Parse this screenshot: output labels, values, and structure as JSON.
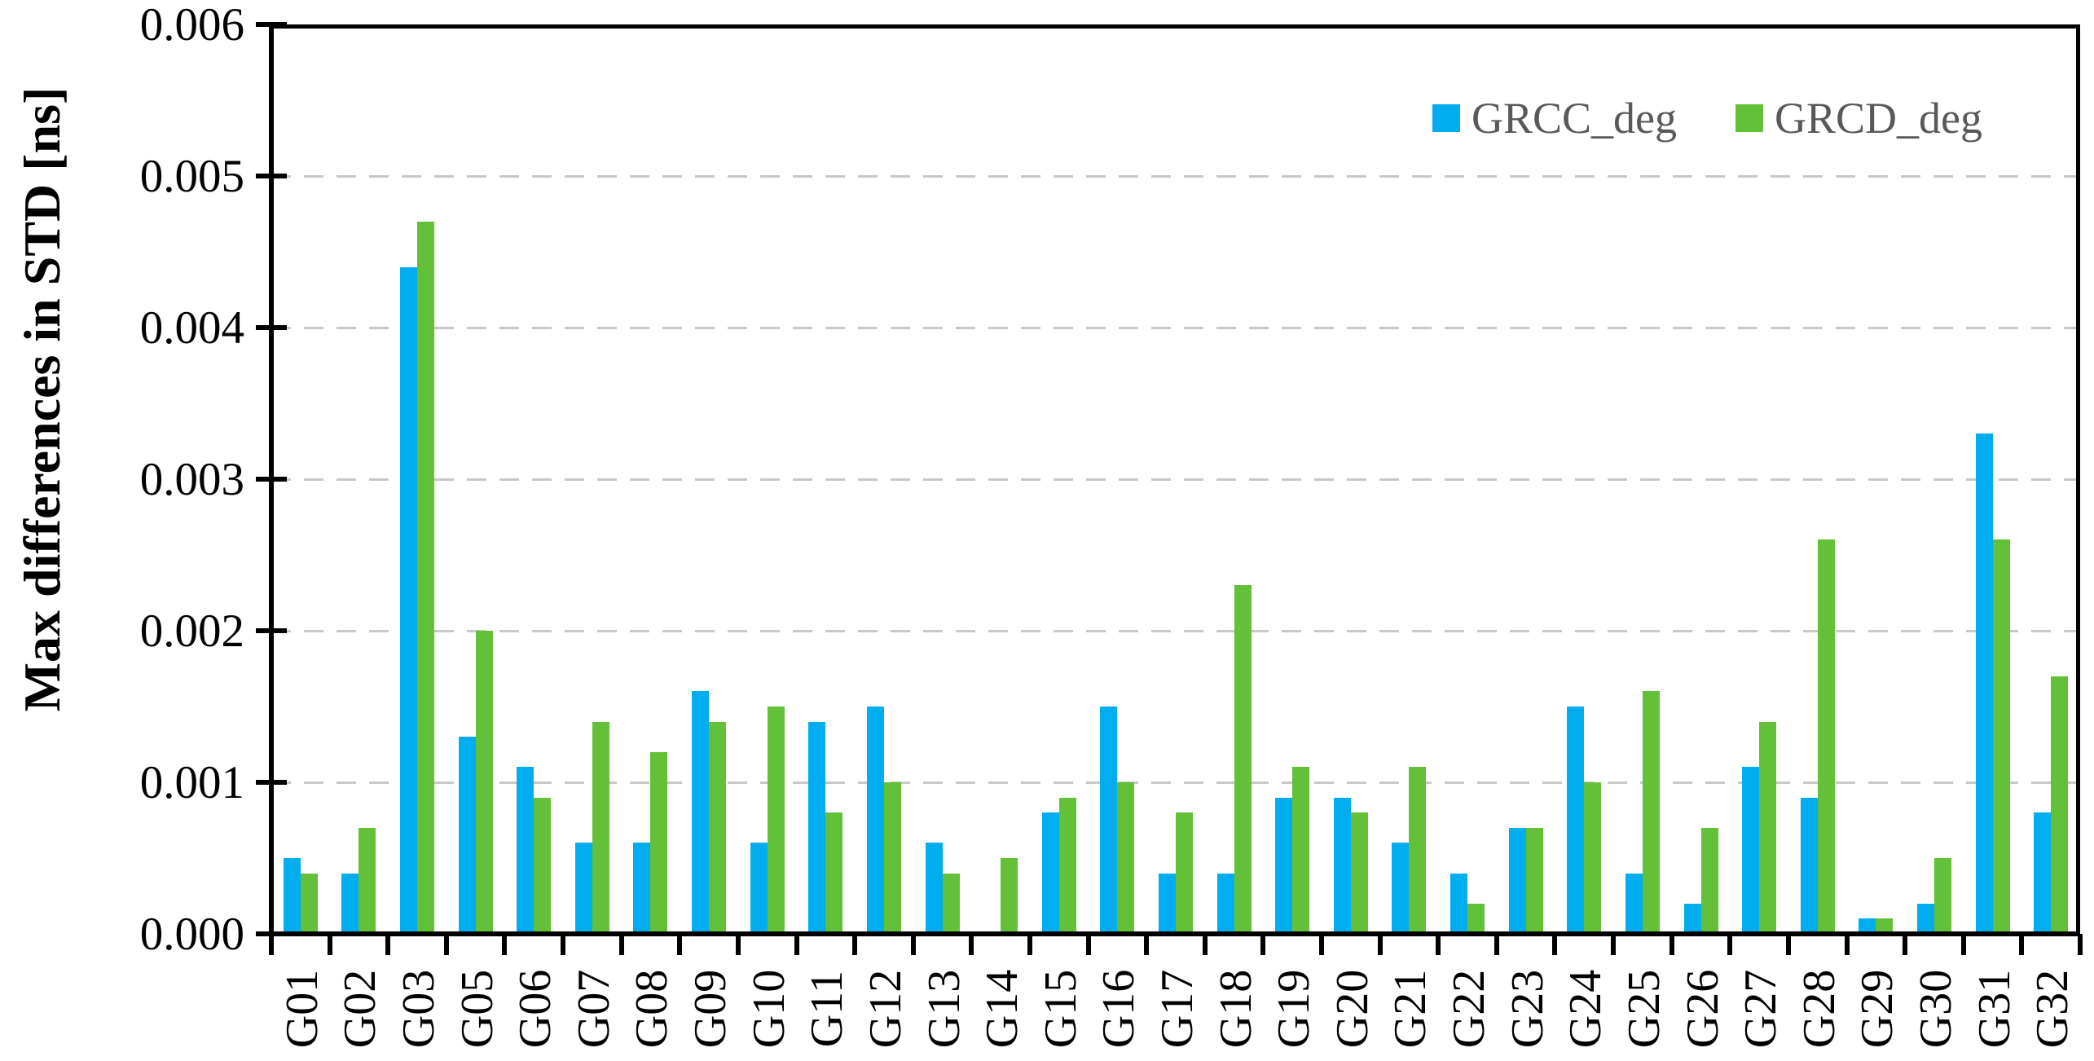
{
  "chart_data": {
    "type": "bar",
    "title": "",
    "xlabel": "",
    "ylabel": "Max differences in STD [ns]",
    "ylim": [
      0,
      0.006
    ],
    "y_ticks": [
      0,
      0.001,
      0.002,
      0.003,
      0.004,
      0.005,
      0.006
    ],
    "y_tick_labels": [
      "0.000",
      "0.001",
      "0.002",
      "0.003",
      "0.004",
      "0.005",
      "0.006"
    ],
    "grid": "horizontal-dashed",
    "legend_position": "top-right-inside",
    "categories": [
      "G01",
      "G02",
      "G03",
      "G05",
      "G06",
      "G07",
      "G08",
      "G09",
      "G10",
      "G11",
      "G12",
      "G13",
      "G14",
      "G15",
      "G16",
      "G17",
      "G18",
      "G19",
      "G20",
      "G21",
      "G22",
      "G23",
      "G24",
      "G25",
      "G26",
      "G27",
      "G28",
      "G29",
      "G30",
      "G31",
      "G32"
    ],
    "series": [
      {
        "name": "GRCC_deg",
        "color": "#00AEEF",
        "values": [
          0.0005,
          0.0004,
          0.0044,
          0.0013,
          0.0011,
          0.0006,
          0.0006,
          0.0016,
          0.0006,
          0.0014,
          0.0015,
          0.0006,
          0.0,
          0.0008,
          0.0015,
          0.0004,
          0.0004,
          0.0009,
          0.0009,
          0.0006,
          0.0004,
          0.0007,
          0.0015,
          0.0004,
          0.0002,
          0.0011,
          0.0009,
          0.0001,
          0.0002,
          0.0033,
          0.0008
        ]
      },
      {
        "name": "GRCD_deg",
        "color": "#62C138",
        "values": [
          0.0004,
          0.0007,
          0.0047,
          0.002,
          0.0009,
          0.0014,
          0.0012,
          0.0014,
          0.0015,
          0.0008,
          0.001,
          0.0004,
          0.0005,
          0.0009,
          0.001,
          0.0008,
          0.0023,
          0.0011,
          0.0008,
          0.0011,
          0.0002,
          0.0007,
          0.001,
          0.0016,
          0.0007,
          0.0014,
          0.0026,
          0.0001,
          0.0005,
          0.0026,
          0.0017
        ]
      }
    ],
    "colors": {
      "grid": "#c8c8c8",
      "axis": "#000000",
      "legend_text": "#595959"
    }
  }
}
